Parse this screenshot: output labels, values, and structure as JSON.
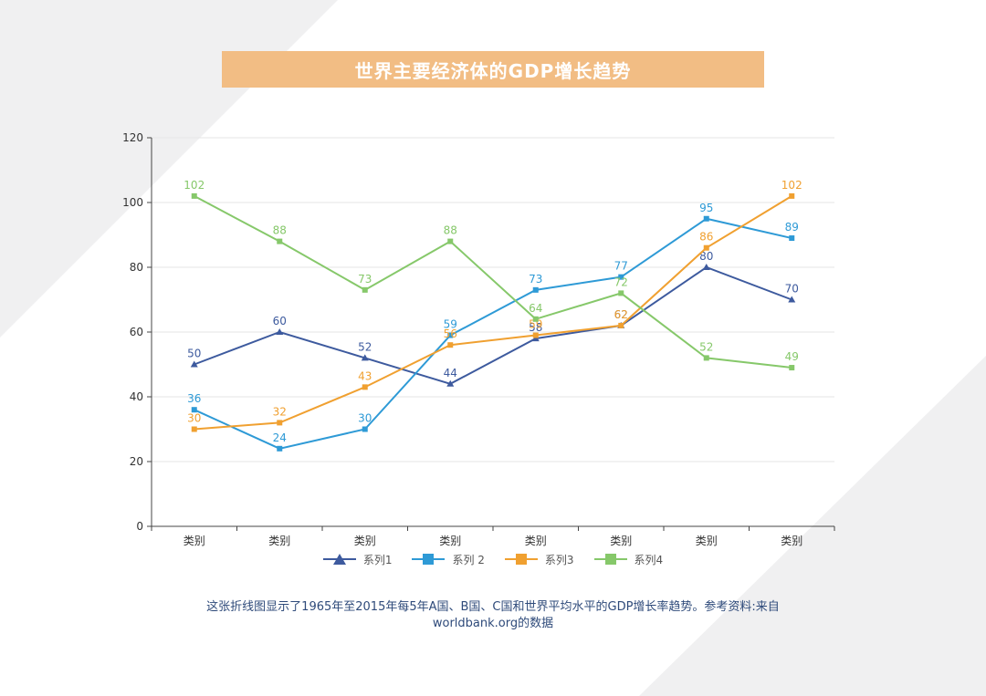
{
  "title": "世界主要经济体的GDP增长趋势",
  "caption": "这张折线图显示了1965年至2015年每5年A国、B国、C国和世界平均水平的GDP增长率趋势。参考资料:来自worldbank.org的数据",
  "colors": {
    "title_bg": "#f2bd84",
    "series1": "#3d5a9e",
    "series2": "#2e9ad6",
    "series3": "#f0a030",
    "series4": "#86c86a",
    "caption": "#2e4a7a"
  },
  "chart_data": {
    "type": "line",
    "categories": [
      "类别",
      "类别",
      "类别",
      "类别",
      "类别",
      "类别",
      "类别",
      "类别"
    ],
    "ylim": [
      0,
      120
    ],
    "yticks": [
      0,
      20,
      40,
      60,
      80,
      100,
      120
    ],
    "grid": true,
    "legend_position": "bottom",
    "series": [
      {
        "name": "系列1",
        "marker": "triangle",
        "color": "#3d5a9e",
        "values": [
          50,
          60,
          52,
          44,
          58,
          62,
          80,
          70
        ]
      },
      {
        "name": "系列 2",
        "marker": "square",
        "color": "#2e9ad6",
        "values": [
          36,
          24,
          30,
          59,
          73,
          77,
          95,
          89
        ]
      },
      {
        "name": "系列3",
        "marker": "square",
        "color": "#f0a030",
        "values": [
          30,
          32,
          43,
          56,
          59,
          62,
          86,
          102
        ]
      },
      {
        "name": "系列4",
        "marker": "square",
        "color": "#86c86a",
        "values": [
          102,
          88,
          73,
          88,
          64,
          72,
          52,
          49
        ]
      }
    ]
  }
}
